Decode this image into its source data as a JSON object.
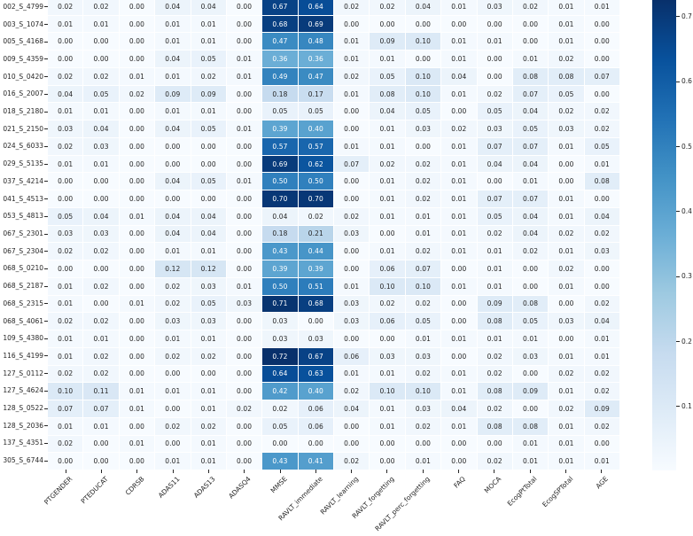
{
  "chart_data": {
    "type": "heatmap",
    "title": "",
    "colormap": "Blues",
    "colormap_stops": [
      "#f7fbff",
      "#deebf7",
      "#c6dbef",
      "#9ecae1",
      "#6baed6",
      "#4292c6",
      "#2171b5",
      "#08519c",
      "#08306b"
    ],
    "vmin": 0.0,
    "vmax": 0.72,
    "grid_line_color": "#ffffff",
    "annotation_dark_text_color": "#262626",
    "annotation_light_text_color": "#ffffff",
    "annotation_format": "2-decimals",
    "legend_position": "right-colorbar",
    "columns": [
      "PTGENDER",
      "PTEDUCAT",
      "CDRSB",
      "ADAS11",
      "ADAS13",
      "ADASQ4",
      "MMSE",
      "RAVLT_immediate",
      "RAVLT_learning",
      "RAVLT_forgetting",
      "RAVLT_perc_forgetting",
      "FAQ",
      "MOCA",
      "EcogPtTotal",
      "EcogSPTotal",
      "AGE"
    ],
    "rows": [
      "002_S_4799",
      "003_S_1074",
      "005_S_4168",
      "009_S_4359",
      "010_S_0420",
      "016_S_2007",
      "018_S_2180",
      "021_S_2150",
      "024_S_6033",
      "029_S_5135",
      "037_S_4214",
      "041_S_4513",
      "053_S_4813",
      "067_S_2301",
      "067_S_2304",
      "068_S_0210",
      "068_S_2187",
      "068_S_2315",
      "068_S_4061",
      "109_S_4380",
      "116_S_4199",
      "127_S_0112",
      "127_S_4624",
      "128_S_0522",
      "128_S_2036",
      "137_S_4351",
      "305_S_6744"
    ],
    "values": [
      [
        0.02,
        0.02,
        0.0,
        0.04,
        0.04,
        0.0,
        0.67,
        0.64,
        0.02,
        0.02,
        0.04,
        0.01,
        0.03,
        0.02,
        0.01,
        0.01
      ],
      [
        0.01,
        0.01,
        0.0,
        0.01,
        0.01,
        0.0,
        0.68,
        0.69,
        0.0,
        0.0,
        0.0,
        0.0,
        0.0,
        0.0,
        0.01,
        0.0
      ],
      [
        0.0,
        0.0,
        0.0,
        0.01,
        0.01,
        0.0,
        0.47,
        0.48,
        0.01,
        0.09,
        0.1,
        0.01,
        0.01,
        0.0,
        0.01,
        0.0
      ],
      [
        0.0,
        0.0,
        0.0,
        0.04,
        0.05,
        0.01,
        0.36,
        0.36,
        0.01,
        0.01,
        0.0,
        0.01,
        0.0,
        0.01,
        0.02,
        0.0
      ],
      [
        0.02,
        0.02,
        0.01,
        0.01,
        0.02,
        0.01,
        0.49,
        0.47,
        0.02,
        0.05,
        0.1,
        0.04,
        0.0,
        0.08,
        0.08,
        0.07
      ],
      [
        0.04,
        0.05,
        0.02,
        0.09,
        0.09,
        0.0,
        0.18,
        0.17,
        0.01,
        0.08,
        0.1,
        0.01,
        0.02,
        0.07,
        0.05,
        0.0
      ],
      [
        0.01,
        0.01,
        0.0,
        0.01,
        0.01,
        0.0,
        0.05,
        0.05,
        0.0,
        0.04,
        0.05,
        0.0,
        0.05,
        0.04,
        0.02,
        0.02
      ],
      [
        0.03,
        0.04,
        0.0,
        0.04,
        0.05,
        0.01,
        0.39,
        0.4,
        0.0,
        0.01,
        0.03,
        0.02,
        0.03,
        0.05,
        0.03,
        0.02
      ],
      [
        0.02,
        0.03,
        0.0,
        0.0,
        0.0,
        0.0,
        0.57,
        0.57,
        0.01,
        0.01,
        0.0,
        0.01,
        0.07,
        0.07,
        0.01,
        0.05
      ],
      [
        0.01,
        0.01,
        0.0,
        0.0,
        0.0,
        0.0,
        0.69,
        0.62,
        0.07,
        0.02,
        0.02,
        0.01,
        0.04,
        0.04,
        0.0,
        0.01
      ],
      [
        0.0,
        0.0,
        0.0,
        0.04,
        0.05,
        0.01,
        0.5,
        0.5,
        0.0,
        0.01,
        0.02,
        0.01,
        0.0,
        0.01,
        0.0,
        0.08
      ],
      [
        0.0,
        0.0,
        0.0,
        0.0,
        0.0,
        0.0,
        0.7,
        0.7,
        0.0,
        0.01,
        0.02,
        0.01,
        0.07,
        0.07,
        0.01,
        0.0
      ],
      [
        0.05,
        0.04,
        0.01,
        0.04,
        0.04,
        0.0,
        0.04,
        0.02,
        0.02,
        0.01,
        0.01,
        0.01,
        0.05,
        0.04,
        0.01,
        0.04
      ],
      [
        0.03,
        0.03,
        0.0,
        0.04,
        0.04,
        0.0,
        0.18,
        0.21,
        0.03,
        0.0,
        0.01,
        0.01,
        0.02,
        0.04,
        0.02,
        0.02
      ],
      [
        0.02,
        0.02,
        0.0,
        0.01,
        0.01,
        0.0,
        0.43,
        0.44,
        0.0,
        0.01,
        0.02,
        0.01,
        0.01,
        0.02,
        0.01,
        0.03
      ],
      [
        0.0,
        0.0,
        0.0,
        0.12,
        0.12,
        0.0,
        0.39,
        0.39,
        0.0,
        0.06,
        0.07,
        0.0,
        0.01,
        0.0,
        0.02,
        0.0
      ],
      [
        0.01,
        0.02,
        0.0,
        0.02,
        0.03,
        0.01,
        0.5,
        0.51,
        0.01,
        0.1,
        0.1,
        0.01,
        0.01,
        0.0,
        0.01,
        0.0
      ],
      [
        0.01,
        0.0,
        0.01,
        0.02,
        0.05,
        0.03,
        0.71,
        0.68,
        0.03,
        0.02,
        0.02,
        0.0,
        0.09,
        0.08,
        0.0,
        0.02
      ],
      [
        0.02,
        0.02,
        0.0,
        0.03,
        0.03,
        0.0,
        0.03,
        0.0,
        0.03,
        0.06,
        0.05,
        0.0,
        0.08,
        0.05,
        0.03,
        0.04
      ],
      [
        0.01,
        0.01,
        0.0,
        0.01,
        0.01,
        0.0,
        0.03,
        0.03,
        0.0,
        0.0,
        0.01,
        0.01,
        0.01,
        0.01,
        0.0,
        0.01
      ],
      [
        0.01,
        0.02,
        0.0,
        0.02,
        0.02,
        0.0,
        0.72,
        0.67,
        0.06,
        0.03,
        0.03,
        0.0,
        0.02,
        0.03,
        0.01,
        0.01
      ],
      [
        0.02,
        0.02,
        0.0,
        0.0,
        0.0,
        0.0,
        0.64,
        0.63,
        0.01,
        0.01,
        0.02,
        0.01,
        0.02,
        0.0,
        0.02,
        0.02
      ],
      [
        0.1,
        0.11,
        0.01,
        0.01,
        0.01,
        0.0,
        0.42,
        0.4,
        0.02,
        0.1,
        0.1,
        0.01,
        0.08,
        0.09,
        0.01,
        0.02
      ],
      [
        0.07,
        0.07,
        0.01,
        0.0,
        0.01,
        0.02,
        0.02,
        0.06,
        0.04,
        0.01,
        0.03,
        0.04,
        0.02,
        0.0,
        0.02,
        0.09
      ],
      [
        0.01,
        0.01,
        0.0,
        0.02,
        0.02,
        0.0,
        0.05,
        0.06,
        0.0,
        0.01,
        0.02,
        0.01,
        0.08,
        0.08,
        0.01,
        0.02
      ],
      [
        0.02,
        0.0,
        0.01,
        0.0,
        0.01,
        0.0,
        0.0,
        0.0,
        0.0,
        0.0,
        0.0,
        0.0,
        0.0,
        0.01,
        0.01,
        0.0
      ],
      [
        0.0,
        0.0,
        0.0,
        0.01,
        0.01,
        0.0,
        0.43,
        0.41,
        0.02,
        0.0,
        0.01,
        0.0,
        0.02,
        0.01,
        0.01,
        0.01
      ]
    ],
    "colorbar": {
      "tick_labels": [
        "0.7",
        "0.6",
        "0.5",
        "0.4",
        "0.3",
        "0.2",
        "0.1"
      ],
      "tick_values": [
        0.7,
        0.6,
        0.5,
        0.4,
        0.3,
        0.2,
        0.1
      ]
    }
  }
}
